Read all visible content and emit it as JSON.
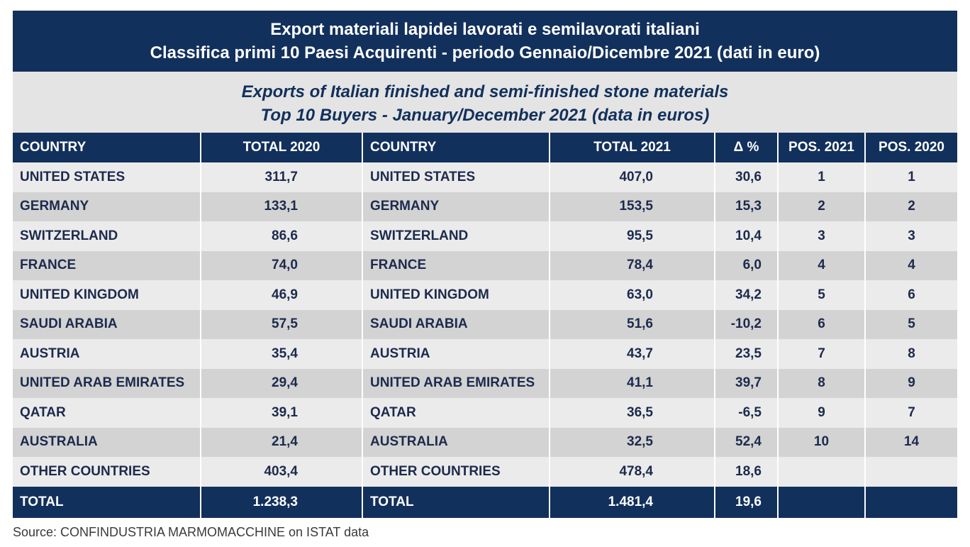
{
  "title_it": {
    "line1": "Export materiali lapidei lavorati e semilavorati italiani",
    "line2": "Classifica primi 10 Paesi Acquirenti - periodo Gennaio/Dicembre 2021 (dati in euro)"
  },
  "title_en": {
    "line1": "Exports of Italian finished and semi-finished stone materials",
    "line2": "Top 10 Buyers - January/December 2021 (data in euros)"
  },
  "headers": {
    "country_a": "COUNTRY",
    "total_2020": "TOTAL 2020",
    "country_b": "COUNTRY",
    "total_2021": "TOTAL 2021",
    "delta": "Δ %",
    "pos_2021": "POS. 2021",
    "pos_2020": "POS. 2020"
  },
  "chart_data": {
    "type": "table",
    "columns": [
      "COUNTRY",
      "TOTAL 2020",
      "COUNTRY",
      "TOTAL 2021",
      "Δ %",
      "POS. 2021",
      "POS. 2020"
    ],
    "rows": [
      [
        "UNITED STATES",
        "311,7",
        "UNITED STATES",
        "407,0",
        "30,6",
        "1",
        "1"
      ],
      [
        "GERMANY",
        "133,1",
        "GERMANY",
        "153,5",
        "15,3",
        "2",
        "2"
      ],
      [
        "SWITZERLAND",
        "86,6",
        "SWITZERLAND",
        "95,5",
        "10,4",
        "3",
        "3"
      ],
      [
        "FRANCE",
        "74,0",
        "FRANCE",
        "78,4",
        "6,0",
        "4",
        "4"
      ],
      [
        "UNITED KINGDOM",
        "46,9",
        "UNITED KINGDOM",
        "63,0",
        "34,2",
        "5",
        "6"
      ],
      [
        "SAUDI ARABIA",
        "57,5",
        "SAUDI ARABIA",
        "51,6",
        "-10,2",
        "6",
        "5"
      ],
      [
        "AUSTRIA",
        "35,4",
        "AUSTRIA",
        "43,7",
        "23,5",
        "7",
        "8"
      ],
      [
        "UNITED ARAB EMIRATES",
        "29,4",
        "UNITED ARAB EMIRATES",
        "41,1",
        "39,7",
        "8",
        "9"
      ],
      [
        "QATAR",
        "39,1",
        "QATAR",
        "36,5",
        "-6,5",
        "9",
        "7"
      ],
      [
        "AUSTRALIA",
        "21,4",
        "AUSTRALIA",
        "32,5",
        "52,4",
        "10",
        "14"
      ],
      [
        "OTHER COUNTRIES",
        "403,4",
        "OTHER COUNTRIES",
        "478,4",
        "18,6",
        "",
        ""
      ]
    ],
    "total": [
      "TOTAL",
      "1.238,3",
      "TOTAL",
      "1.481,4",
      "19,6",
      "",
      ""
    ]
  },
  "source": "Source: CONFINDUSTRIA MARMOMACCHINE on ISTAT data",
  "colors": {
    "header_bg": "#12305c",
    "row_light": "#ebebeb",
    "row_dark": "#d3d3d3",
    "subtitle_bg": "#e4e4e4"
  }
}
